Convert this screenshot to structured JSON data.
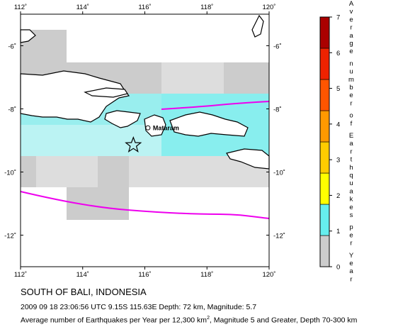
{
  "map": {
    "lon_range": [
      112,
      120
    ],
    "lat_range": [
      -13,
      -5
    ],
    "lon_ticks": [
      {
        "value": 112,
        "label": "112˚"
      },
      {
        "value": 114,
        "label": "114˚"
      },
      {
        "value": 116,
        "label": "116˚"
      },
      {
        "value": 118,
        "label": "118˚"
      },
      {
        "value": 120,
        "label": "120˚"
      }
    ],
    "lat_ticks": [
      {
        "value": -6,
        "label": "-6˚"
      },
      {
        "value": -8,
        "label": "-8˚"
      },
      {
        "value": -10,
        "label": "-10˚"
      },
      {
        "value": -12,
        "label": "-12˚"
      }
    ],
    "epicenter": {
      "lon": 115.63,
      "lat": -9.15
    },
    "city": {
      "name": "Mataram",
      "lon": 116.1,
      "lat": -8.6
    },
    "land_color": "#ffffff",
    "coast_color": "#000000",
    "trench_color": "#ee00ee",
    "cells_none_color": "#ffffff",
    "cells_low_color": "#cccccc",
    "cells_one_color": "#99eeee"
  },
  "legend": {
    "title_letters": [
      "A",
      "v",
      "e",
      "r",
      "a",
      "g",
      "e",
      "n",
      "u",
      "m",
      "b",
      "e",
      "r",
      "o",
      "f",
      "E",
      "a",
      "r",
      "t",
      "h",
      "q",
      "u",
      "a",
      "k",
      "e",
      "s",
      "p",
      "e",
      "r",
      "Y",
      "e",
      "a",
      "r"
    ],
    "ticks": [
      "0",
      "1",
      "2",
      "3",
      "4",
      "5",
      "6",
      "7"
    ],
    "colors": [
      "#cccccc",
      "#66eeee",
      "#ffff00",
      "#ffcc00",
      "#ff9900",
      "#ff5500",
      "#ee2200",
      "#aa0000"
    ]
  },
  "caption": {
    "region": "SOUTH OF BALI, INDONESIA",
    "event": "2009 09 18 23:06:56 UTC 9.15S 115.63E Depth: 72 km, Magnitude: 5.7",
    "legend_desc_prefix": "Average number of Earthquakes per Year per 12,300 km",
    "legend_desc_sup": "2",
    "legend_desc_suffix": ", Magnitude 5 and Greater, Depth 70-300 km"
  }
}
